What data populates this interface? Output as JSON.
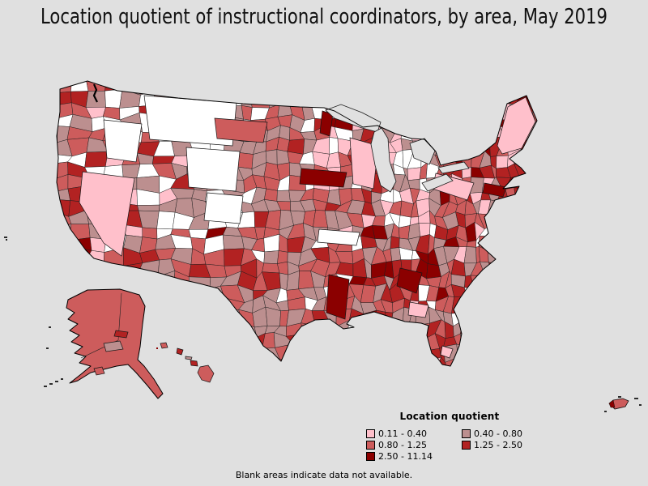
{
  "title": "Location quotient of instructional coordinators, by area, May 2019",
  "note": "Blank areas indicate data not available.",
  "map": {
    "region": "United States",
    "background": "#e0e0e0",
    "outline_color": "#000000",
    "county_line_color": "#1c1c1c",
    "colors": {
      "nodata": "#ffffff",
      "pink": "#ffc0cb",
      "rosybrown": "#bc8f8f",
      "indianred": "#cd5c5c",
      "firebrick": "#b22222",
      "darkred": "#8b0000",
      "water": "#000000"
    }
  },
  "legend": {
    "title": "Location quotient",
    "items": [
      {
        "label": "0.11 - 0.40",
        "color_key": "pink",
        "color": "#ffc0cb"
      },
      {
        "label": "0.40 - 0.80",
        "color_key": "rosybrown",
        "color": "#bc8f8f"
      },
      {
        "label": "0.80 - 1.25",
        "color_key": "indianred",
        "color": "#cd5c5c"
      },
      {
        "label": "1.25 - 2.50",
        "color_key": "firebrick",
        "color": "#b22222"
      },
      {
        "label": "2.50 - 11.14",
        "color_key": "darkred",
        "color": "#8b0000"
      }
    ]
  }
}
